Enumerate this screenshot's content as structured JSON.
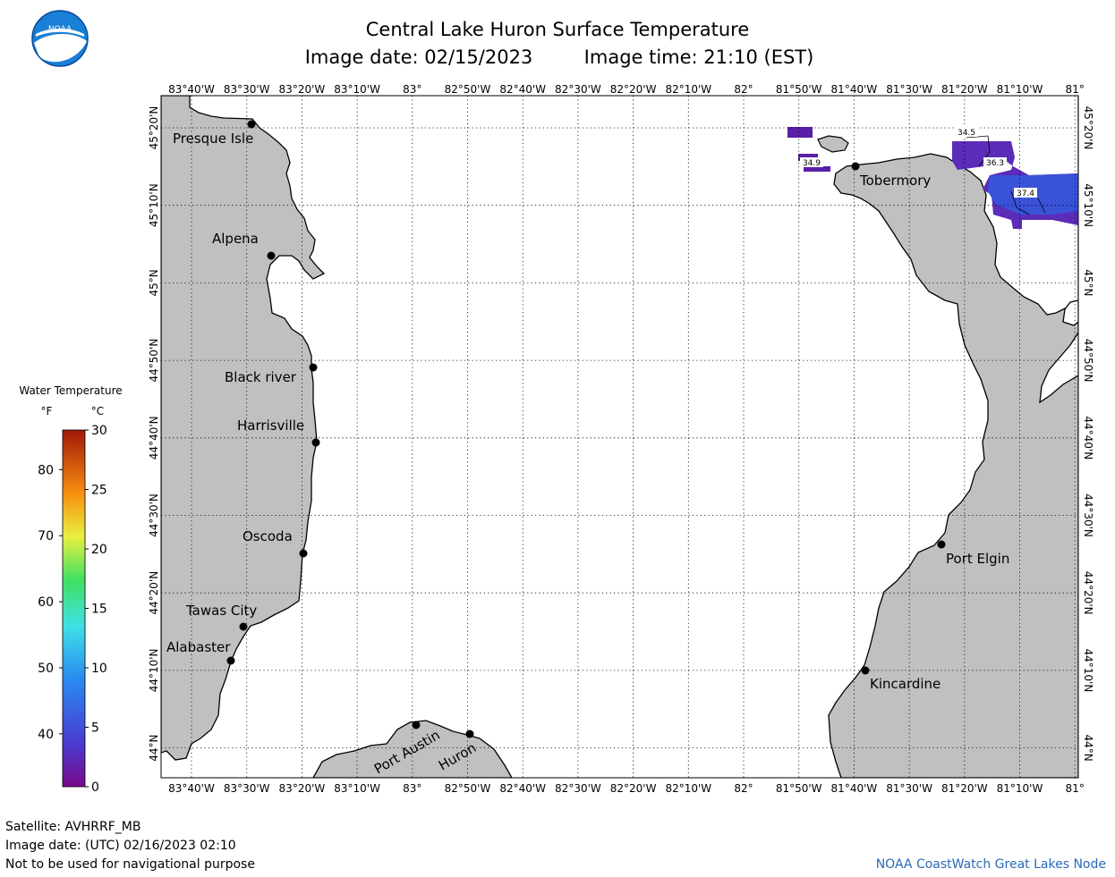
{
  "header": {
    "title": "Central Lake Huron Surface Temperature",
    "subtitle_date": "Image date: 02/15/2023",
    "subtitle_time": "Image time: 21:10 (EST)"
  },
  "logo": {
    "text": "NOAA"
  },
  "map": {
    "lon_labels": [
      "83°40'W",
      "83°30'W",
      "83°20'W",
      "83°10'W",
      "83°",
      "82°50'W",
      "82°40'W",
      "82°30'W",
      "82°20'W",
      "82°10'W",
      "82°",
      "81°50'W",
      "81°40'W",
      "81°30'W",
      "81°20'W",
      "81°10'W",
      "81°"
    ],
    "lat_labels": [
      "45°20'N",
      "45°10'N",
      "45°N",
      "44°50'N",
      "44°40'N",
      "44°30'N",
      "44°20'N",
      "44°10'N",
      "44°N"
    ],
    "cities": [
      {
        "name": "Presque Isle"
      },
      {
        "name": "Alpena"
      },
      {
        "name": "Black river"
      },
      {
        "name": "Harrisville"
      },
      {
        "name": "Oscoda"
      },
      {
        "name": "Tawas City"
      },
      {
        "name": "Alabaster"
      },
      {
        "name": "Port Austin"
      },
      {
        "name": "Huron"
      },
      {
        "name": "Tobermory"
      },
      {
        "name": "Port Elgin"
      },
      {
        "name": "Kincardine"
      }
    ],
    "isotherms": [
      "34.5",
      "36.3",
      "37.4",
      "34.9"
    ],
    "land_color": "#c0c0c0",
    "water_color": "#ffffff"
  },
  "legend": {
    "title": "Water Temperature",
    "unit_f": "°F",
    "unit_c": "°C",
    "f_ticks": [
      "80",
      "70",
      "60",
      "50",
      "40"
    ],
    "c_ticks": [
      "30",
      "25",
      "20",
      "15",
      "10",
      "5",
      "0"
    ]
  },
  "footer": {
    "satellite": "Satellite: AVHRRF_MB",
    "utc_date": "Image date: (UTC) 02/16/2023  02:10",
    "disclaimer": "Not to be used for navigational purpose",
    "credit": "NOAA CoastWatch Great Lakes Node"
  }
}
